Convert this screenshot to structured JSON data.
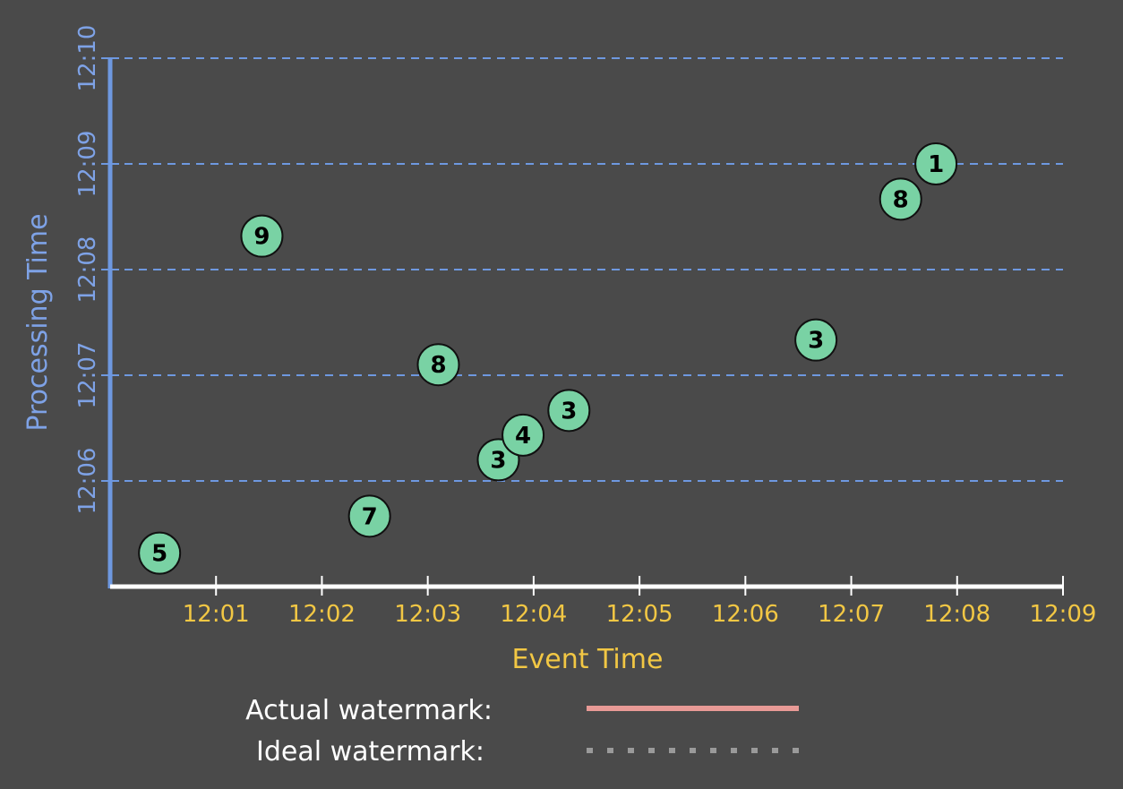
{
  "chart_data": {
    "type": "scatter",
    "xlabel": "Event Time",
    "ylabel": "Processing Time",
    "x_ticks": [
      "12:01",
      "12:02",
      "12:03",
      "12:04",
      "12:05",
      "12:06",
      "12:07",
      "12:08",
      "12:09"
    ],
    "y_ticks": [
      "12:06",
      "12:07",
      "12:08",
      "12:09",
      "12:10"
    ],
    "xlim": [
      "12:00",
      "12:09"
    ],
    "ylim": [
      "12:05",
      "12:10"
    ],
    "grid": "horizontal dashed",
    "points": [
      {
        "x": "12:00:28",
        "y": "12:05:19",
        "label": "5"
      },
      {
        "x": "12:01:26",
        "y": "12:08:19",
        "label": "9"
      },
      {
        "x": "12:02:27",
        "y": "12:05:40",
        "label": "7"
      },
      {
        "x": "12:03:06",
        "y": "12:07:06",
        "label": "8"
      },
      {
        "x": "12:03:40",
        "y": "12:06:12",
        "label": "3"
      },
      {
        "x": "12:03:54",
        "y": "12:06:26",
        "label": "4"
      },
      {
        "x": "12:04:20",
        "y": "12:06:40",
        "label": "3"
      },
      {
        "x": "12:06:40",
        "y": "12:07:20",
        "label": "3"
      },
      {
        "x": "12:07:28",
        "y": "12:08:40",
        "label": "8"
      },
      {
        "x": "12:07:48",
        "y": "12:09:00",
        "label": "1"
      }
    ],
    "legend": [
      {
        "label": "Actual watermark:",
        "style": "solid",
        "color": "#e89a96"
      },
      {
        "label": "Ideal watermark:",
        "style": "dotted",
        "color": "#9a9a9a"
      }
    ],
    "colors": {
      "background": "#4a4a4a",
      "point_fill": "#79d2a4",
      "x_axis": "#ffffff",
      "y_axis": "#6e98e0",
      "x_text": "#f2c744",
      "y_text": "#7ea2e6",
      "grid": "#6e98e0"
    }
  }
}
